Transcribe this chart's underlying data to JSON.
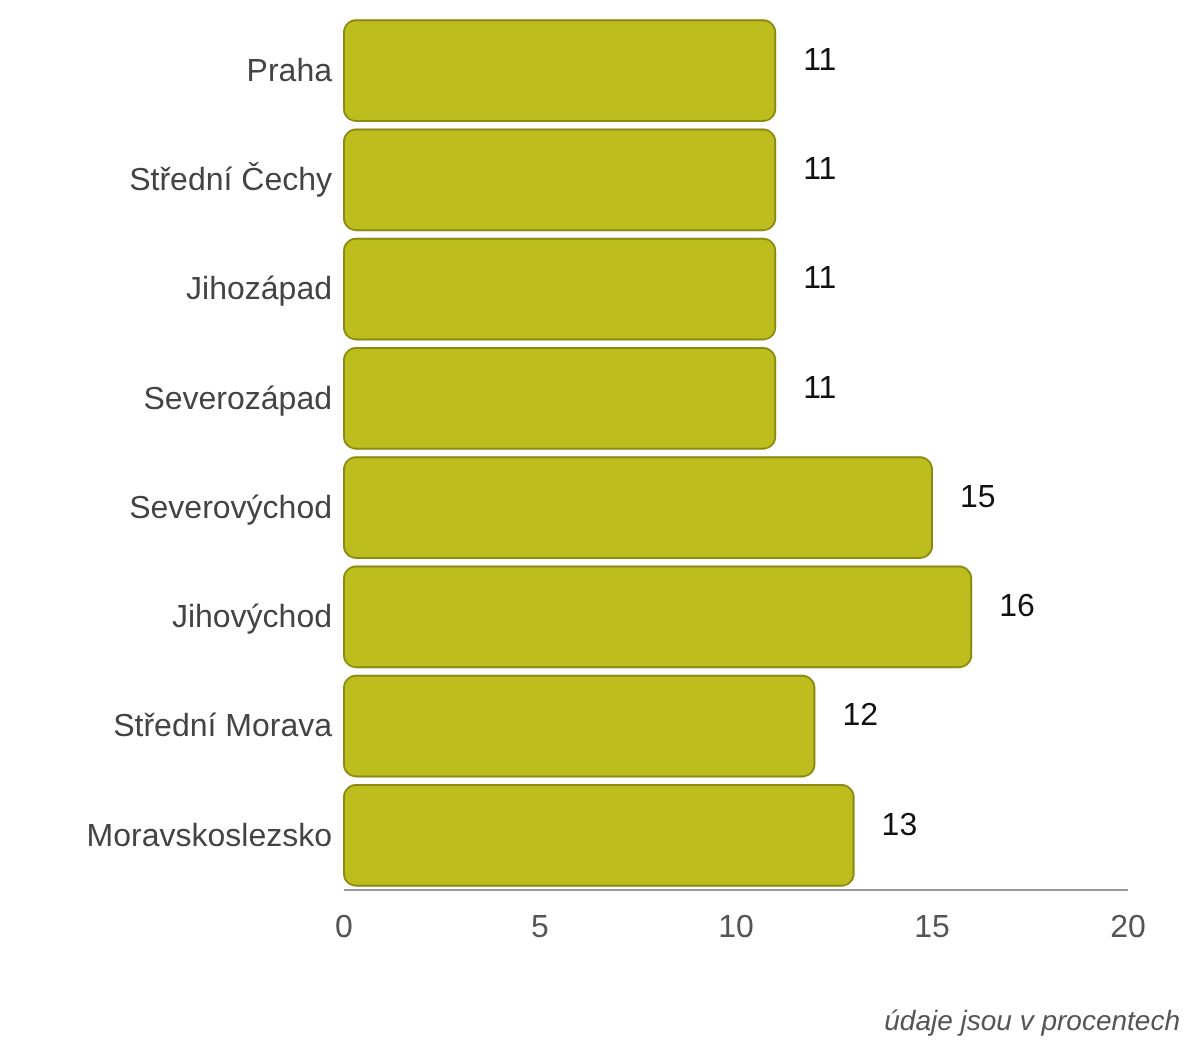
{
  "chart_data": {
    "type": "bar",
    "orientation": "horizontal",
    "categories": [
      "Praha",
      "Střední Čechy",
      "Jihozápad",
      "Severozápad",
      "Severovýchod",
      "Jihovýchod",
      "Střední Morava",
      "Moravskoslezsko"
    ],
    "values": [
      11,
      11,
      11,
      11,
      15,
      16,
      12,
      13
    ],
    "color": "#bdbd1e",
    "xlim": [
      0,
      20
    ],
    "xticks": [
      0,
      5,
      10,
      15,
      20
    ],
    "data_labels": true,
    "grid": false,
    "annotations": [
      "údaje jsou v procentech"
    ]
  }
}
